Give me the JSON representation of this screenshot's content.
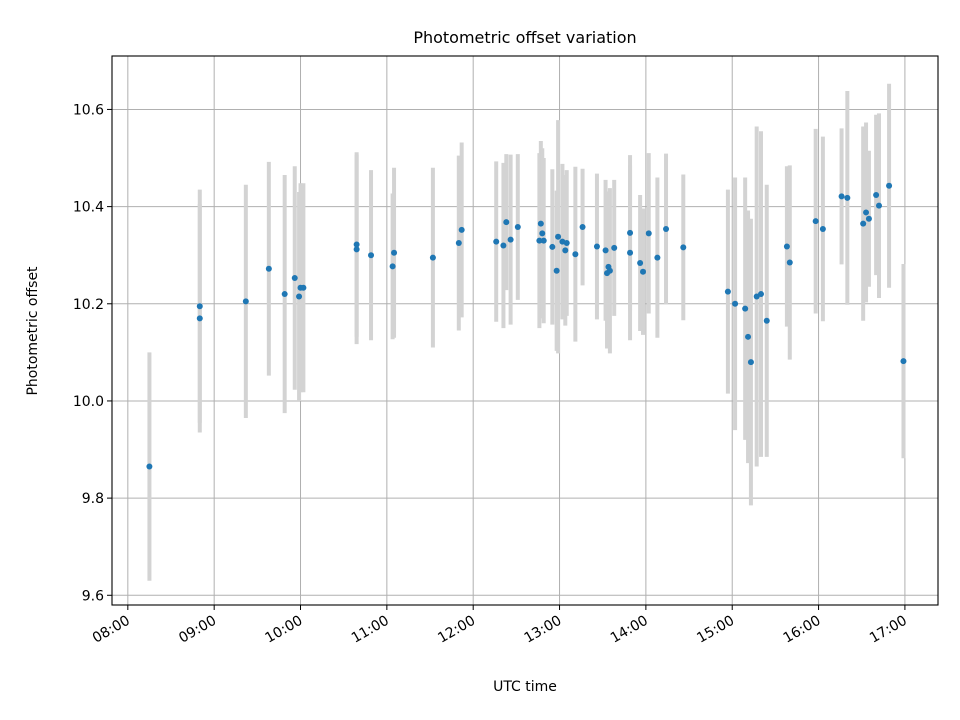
{
  "chart_data": {
    "type": "scatter",
    "title": "Photometric offset variation",
    "xlabel": "UTC time",
    "ylabel": "Photometric offset",
    "xlim": [
      "07:49",
      "17:23"
    ],
    "ylim": [
      9.58,
      10.71
    ],
    "grid": true,
    "x_ticks": [
      "08:00",
      "09:00",
      "10:00",
      "11:00",
      "12:00",
      "13:00",
      "14:00",
      "15:00",
      "16:00",
      "17:00"
    ],
    "y_ticks": [
      9.6,
      9.8,
      10.0,
      10.2,
      10.4,
      10.6
    ],
    "y_tick_labels": [
      "9.6",
      "9.8",
      "10.0",
      "10.2",
      "10.4",
      "10.6"
    ],
    "colors": {
      "points": "#1f77b4",
      "error_bars": "#d3d3d3",
      "grid": "#b0b0b0"
    },
    "series": [
      {
        "x": [
          "08:15",
          "08:50",
          "08:50",
          "09:22",
          "09:38",
          "09:49",
          "09:56",
          "10:00",
          "09:59",
          "10:02",
          "10:39",
          "10:39",
          "10:49",
          "11:04",
          "11:05",
          "11:32",
          "11:50",
          "11:52",
          "12:16",
          "12:21",
          "12:23",
          "12:26",
          "12:31",
          "12:46",
          "12:47",
          "12:48",
          "12:49",
          "12:55",
          "12:58",
          "12:59",
          "13:02",
          "13:04",
          "13:05",
          "13:11",
          "13:16",
          "13:26",
          "13:32",
          "13:33",
          "13:34",
          "13:35",
          "13:38",
          "13:49",
          "13:49",
          "13:56",
          "13:58",
          "14:02",
          "14:08",
          "14:14",
          "14:26",
          "14:57",
          "15:02",
          "15:09",
          "15:11",
          "15:13",
          "15:17",
          "15:20",
          "15:24",
          "15:38",
          "15:40",
          "15:58",
          "16:03",
          "16:16",
          "16:20",
          "16:31",
          "16:33",
          "16:35",
          "16:40",
          "16:42",
          "16:49",
          "16:59"
        ],
        "y": [
          9.865,
          10.195,
          10.17,
          10.205,
          10.272,
          10.22,
          10.253,
          10.233,
          10.215,
          10.233,
          10.312,
          10.322,
          10.3,
          10.277,
          10.305,
          10.295,
          10.325,
          10.352,
          10.328,
          10.32,
          10.368,
          10.332,
          10.358,
          10.33,
          10.365,
          10.345,
          10.33,
          10.317,
          10.268,
          10.338,
          10.328,
          10.31,
          10.325,
          10.302,
          10.358,
          10.318,
          10.31,
          10.263,
          10.276,
          10.268,
          10.315,
          10.346,
          10.305,
          10.284,
          10.266,
          10.345,
          10.295,
          10.354,
          10.316,
          10.225,
          10.2,
          10.19,
          10.132,
          10.08,
          10.215,
          10.22,
          10.165,
          10.318,
          10.285,
          10.37,
          10.354,
          10.421,
          10.418,
          10.365,
          10.388,
          10.375,
          10.424,
          10.402,
          10.443,
          10.082
        ],
        "err": [
          0.235,
          0.24,
          0.235,
          0.24,
          0.22,
          0.245,
          0.23,
          0.215,
          0.215,
          0.215,
          0.195,
          0.19,
          0.175,
          0.15,
          0.175,
          0.185,
          0.18,
          0.18,
          0.165,
          0.17,
          0.14,
          0.175,
          0.15,
          0.18,
          0.17,
          0.175,
          0.17,
          0.16,
          0.165,
          0.24,
          0.16,
          0.155,
          0.15,
          0.18,
          0.12,
          0.15,
          0.145,
          0.155,
          0.155,
          0.17,
          0.14,
          0.16,
          0.18,
          0.14,
          0.13,
          0.165,
          0.165,
          0.155,
          0.15,
          0.21,
          0.26,
          0.27,
          0.26,
          0.295,
          0.35,
          0.335,
          0.28,
          0.165,
          0.2,
          0.19,
          0.19,
          0.14,
          0.22,
          0.2,
          0.185,
          0.14,
          0.165,
          0.19,
          0.21,
          0.2
        ]
      }
    ]
  }
}
